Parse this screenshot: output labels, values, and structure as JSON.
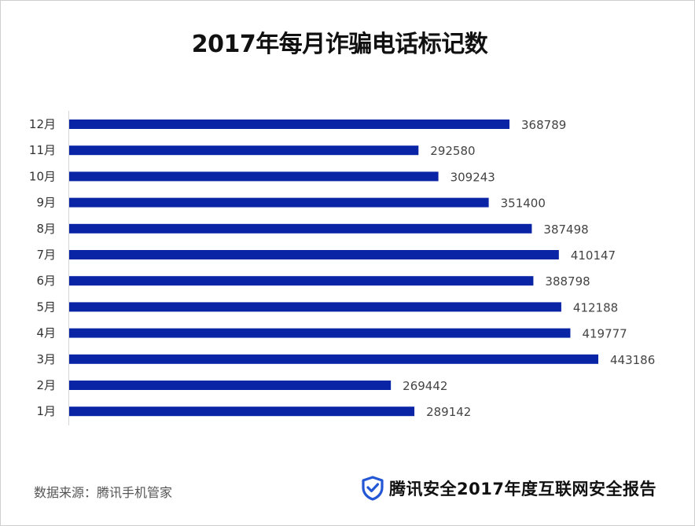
{
  "chart_data": {
    "type": "bar",
    "orientation": "horizontal",
    "title": "2017年每月诈骗电话标记数",
    "categories": [
      "12月",
      "11月",
      "10月",
      "9月",
      "8月",
      "7月",
      "6月",
      "5月",
      "4月",
      "3月",
      "2月",
      "1月"
    ],
    "values": [
      368789,
      292580,
      309243,
      351400,
      387498,
      410147,
      388798,
      412188,
      419777,
      443186,
      269442,
      289142
    ],
    "value_labels": [
      "368789",
      "292580",
      "309243",
      "351400",
      "387498",
      "410147",
      "388798",
      "412188",
      "419777",
      "443186",
      "269442",
      "289142"
    ],
    "xlim": [
      0,
      443186
    ],
    "grid": false,
    "bar_color": "#0a24a6"
  },
  "footer": {
    "source": "数据来源：腾讯手机管家",
    "brand": "腾讯安全2017年度互联网安全报告",
    "brand_icon": "shield-check-icon",
    "brand_color": "#2457d6"
  }
}
